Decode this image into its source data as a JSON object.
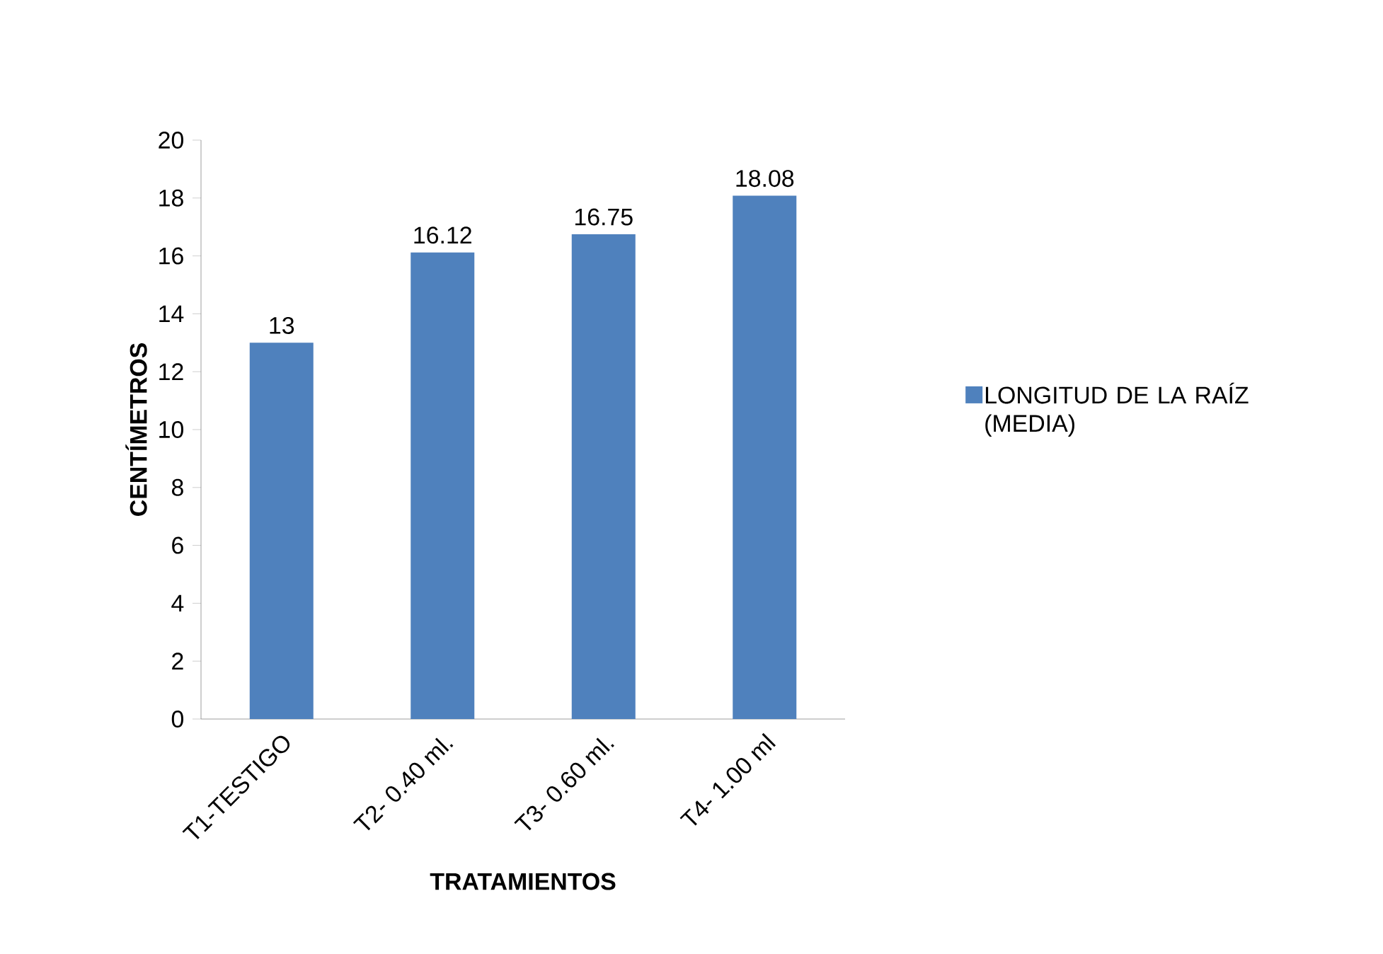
{
  "chart_data": {
    "type": "bar",
    "categories": [
      "T1-TESTIGO",
      "T2- 0.40 ml.",
      "T3- 0.60 ml.",
      "T4- 1.00 ml"
    ],
    "series": [
      {
        "name": "LONGITUD DE LA RAÍZ (MEDIA)",
        "color": "#4f81bd",
        "values": [
          13,
          16.12,
          16.75,
          18.08
        ]
      }
    ],
    "xlabel": "TRATAMIENTOS",
    "ylabel": "CENTÍMETROS",
    "ylim": [
      0,
      20
    ],
    "yticks": [
      0,
      2,
      4,
      6,
      8,
      10,
      12,
      14,
      16,
      18,
      20
    ],
    "data_labels": true,
    "legend": "right"
  }
}
